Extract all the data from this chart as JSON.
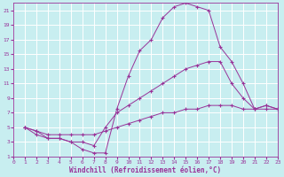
{
  "xlabel": "Windchill (Refroidissement éolien,°C)",
  "bg_color": "#c8eef0",
  "grid_color": "#ffffff",
  "line_color": "#993399",
  "xlim": [
    0,
    23
  ],
  "ylim": [
    1,
    22
  ],
  "xticks": [
    0,
    1,
    2,
    3,
    4,
    5,
    6,
    7,
    8,
    9,
    10,
    11,
    12,
    13,
    14,
    15,
    16,
    17,
    18,
    19,
    20,
    21,
    22,
    23
  ],
  "yticks": [
    1,
    3,
    5,
    7,
    9,
    11,
    13,
    15,
    17,
    19,
    21
  ],
  "line1_x": [
    1,
    2,
    3,
    4,
    5,
    6,
    7,
    8,
    9,
    10,
    11,
    12,
    13,
    14,
    15,
    16,
    17,
    18,
    19,
    20,
    21,
    22,
    23
  ],
  "line1_y": [
    5,
    4,
    3.5,
    3.5,
    3,
    2,
    1.5,
    1.5,
    7.5,
    12,
    15.5,
    17,
    20,
    21.5,
    22,
    21.5,
    21,
    16,
    14,
    11,
    7.5,
    8,
    7.5
  ],
  "line2_x": [
    1,
    2,
    3,
    4,
    5,
    6,
    7,
    8,
    9,
    10,
    11,
    12,
    13,
    14,
    15,
    16,
    17,
    18,
    19,
    20,
    21,
    22,
    23
  ],
  "line2_y": [
    5,
    4.5,
    3.5,
    3.5,
    3,
    3,
    2.5,
    5,
    7,
    8,
    9,
    10,
    11,
    12,
    13,
    13.5,
    14,
    14,
    11,
    9,
    7.5,
    7.5,
    7.5
  ],
  "line3_x": [
    1,
    2,
    3,
    4,
    5,
    6,
    7,
    8,
    9,
    10,
    11,
    12,
    13,
    14,
    15,
    16,
    17,
    18,
    19,
    20,
    21,
    22,
    23
  ],
  "line3_y": [
    5,
    4.5,
    4,
    4,
    4,
    4,
    4,
    4.5,
    5,
    5.5,
    6,
    6.5,
    7,
    7,
    7.5,
    7.5,
    8,
    8,
    8,
    7.5,
    7.5,
    8,
    7.5
  ]
}
